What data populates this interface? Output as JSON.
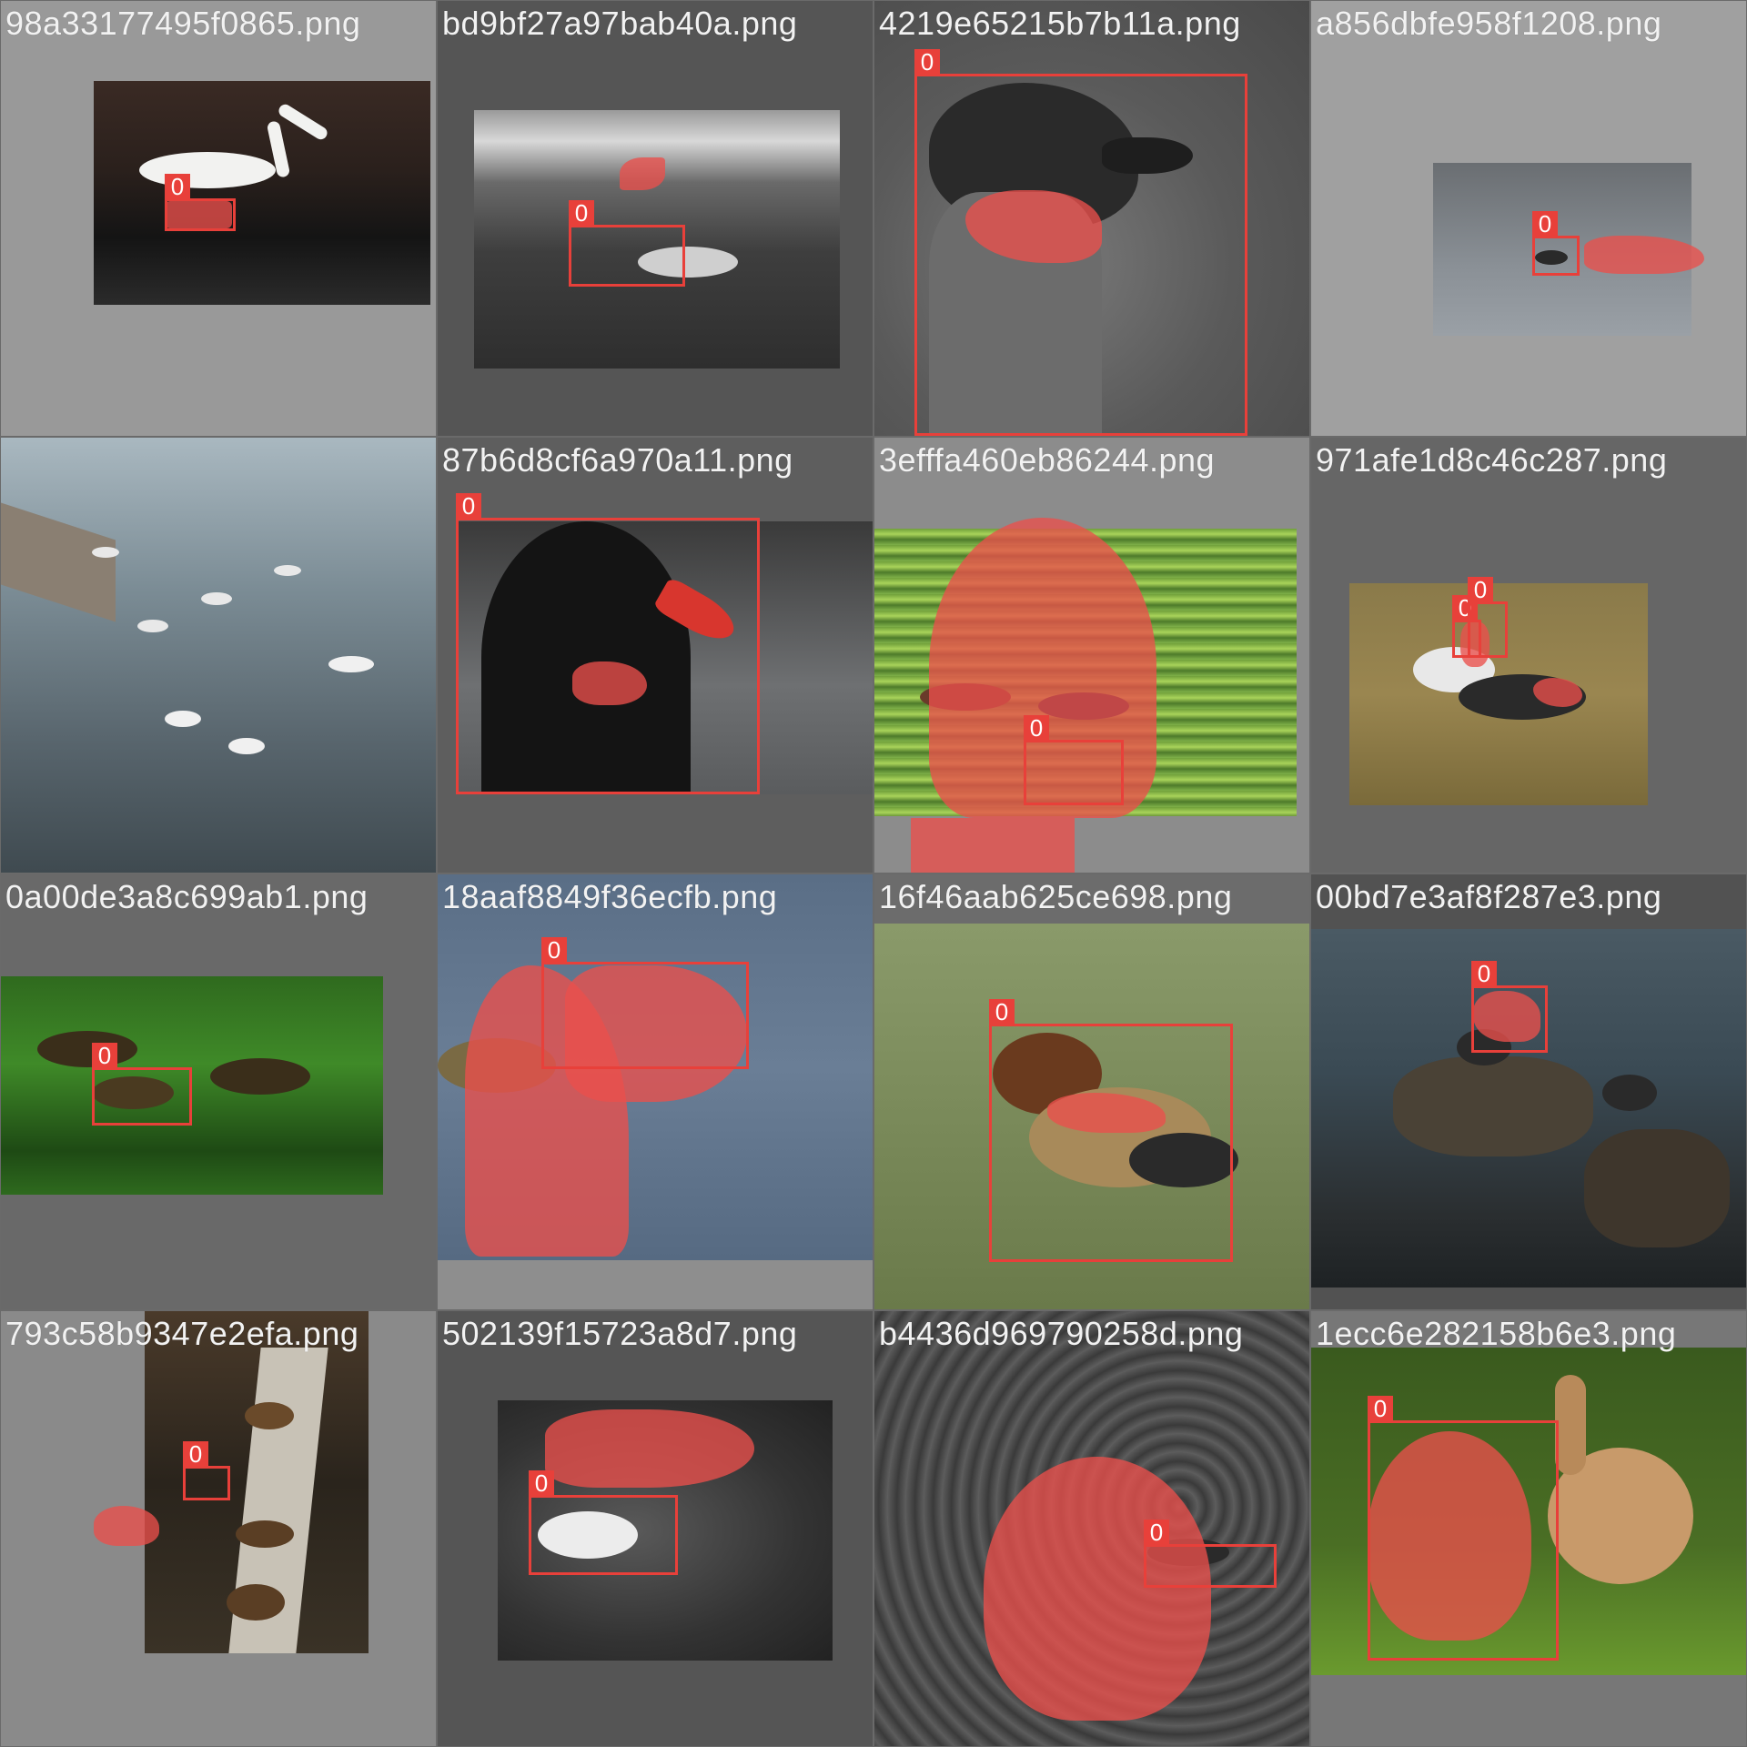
{
  "tiles": [
    {
      "filename": "98a33177495f0865.png",
      "label": "0",
      "bg": "#999999"
    },
    {
      "filename": "bd9bf27a97bab40a.png",
      "label": "0",
      "bg": "#555555"
    },
    {
      "filename": "4219e65215b7b11a.png",
      "label": "0",
      "bg": "#6e6e6e"
    },
    {
      "filename": "a856dbfe958f1208.png",
      "label": "0",
      "bg": "#a0a0a0"
    },
    {
      "filename": "",
      "label": "",
      "bg": "#4a5560"
    },
    {
      "filename": "87b6d8cf6a970a11.png",
      "label": "0",
      "bg": "#5e5e5e"
    },
    {
      "filename": "3efffa460eb86244.png",
      "label": "0",
      "bg": "#8c8c8c"
    },
    {
      "filename": "971afe1d8c46c287.png",
      "label": "0",
      "bg": "#666666"
    },
    {
      "filename": "0a00de3a8c699ab1.png",
      "label": "0",
      "bg": "#696969"
    },
    {
      "filename": "18aaf8849f36ecfb.png",
      "label": "0",
      "bg": "#8e8e8e"
    },
    {
      "filename": "16f46aab625ce698.png",
      "label": "0",
      "bg": "#6c6c6c"
    },
    {
      "filename": "00bd7e3af8f287e3.png",
      "label": "0",
      "bg": "#525252"
    },
    {
      "filename": "793c58b9347e2efa.png",
      "label": "0",
      "bg": "#8a8a8a"
    },
    {
      "filename": "502139f15723a8d7.png",
      "label": "0",
      "bg": "#555555"
    },
    {
      "filename": "b4436d969790258d.png",
      "label": "0",
      "bg": "#4e4e4e"
    },
    {
      "filename": "1ecc6e282158b6e3.png",
      "label": "0",
      "bg": "#777777"
    }
  ]
}
